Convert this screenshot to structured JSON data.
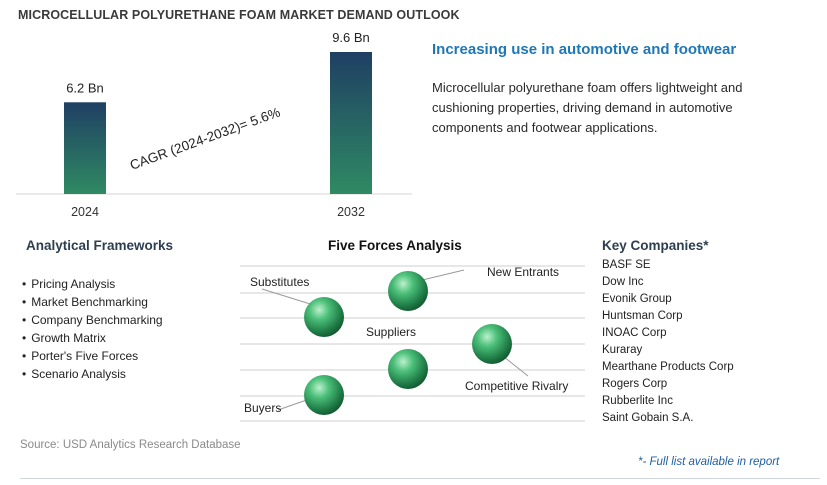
{
  "title": "MICROCELLULAR POLYURETHANE FOAM MARKET DEMAND OUTLOOK",
  "chart_data": {
    "type": "bar",
    "categories": [
      "2024",
      "2032"
    ],
    "values": [
      6.2,
      9.6
    ],
    "value_labels": [
      "6.2 Bn",
      "9.6 Bn"
    ],
    "annotation": "CAGR (2024-2032)=   5.6%",
    "grid": false
  },
  "colors": {
    "bar_top": "#1f3f63",
    "bar_bottom": "#2f8a63",
    "headline": "#1f78b4",
    "sphere": "#2e9b5b"
  },
  "highlight": {
    "headline": "Increasing use in automotive and footwear",
    "description": "Microcellular polyurethane foam offers lightweight and cushioning properties, driving demand in automotive components and footwear applications."
  },
  "frameworks": {
    "title": "Analytical Frameworks",
    "items": [
      "Pricing Analysis",
      "Market Benchmarking",
      "Company Benchmarking",
      "Growth Matrix",
      "Porter's Five Forces",
      "Scenario Analysis"
    ]
  },
  "five_forces": {
    "title": "Five Forces Analysis",
    "labels": {
      "substitutes": "Substitutes",
      "new_entrants": "New Entrants",
      "suppliers": "Suppliers",
      "competitive_rivalry": "Competitive Rivalry",
      "buyers": "Buyers"
    }
  },
  "companies": {
    "title": "Key Companies*",
    "items": [
      "BASF SE",
      "Dow Inc",
      "Evonik Group",
      "Huntsman Corp",
      "INOAC Corp",
      "Kuraray",
      "Mearthane Products Corp",
      "Rogers Corp",
      "Rubberlite Inc",
      "Saint Gobain S.A."
    ]
  },
  "footer": {
    "source": "Source: USD Analytics Research Database",
    "full_list": "*- Full list available in report"
  }
}
